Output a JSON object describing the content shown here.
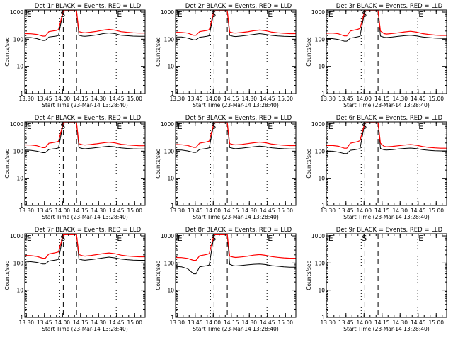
{
  "axes": {
    "x_label": "Start Time (23-Mar-14 13:28:40)",
    "y_label": "Counts/sec",
    "x_ticks": [
      {
        "label": "13:30",
        "min": 1.33
      },
      {
        "label": "13:45",
        "min": 16.33
      },
      {
        "label": "14:00",
        "min": 31.33
      },
      {
        "label": "14:15",
        "min": 46.33
      },
      {
        "label": "14:30",
        "min": 61.33
      },
      {
        "label": "14:45",
        "min": 76.33
      },
      {
        "label": "15:00",
        "min": 91.33
      }
    ],
    "y_ticks": [
      {
        "label": "1",
        "value": 1
      },
      {
        "label": "10",
        "value": 10
      },
      {
        "label": "100",
        "value": 100
      },
      {
        "label": "1000",
        "value": 1000
      }
    ],
    "x_range_min": [
      0,
      100
    ],
    "y_range": [
      1,
      1200
    ],
    "y_scale": "log"
  },
  "markers": [
    {
      "label": "E",
      "min": 1.0,
      "style": "dotted"
    },
    {
      "label": "S",
      "min": 29.0,
      "style": "dotted"
    },
    {
      "label": "E",
      "min": 76.0,
      "style": "dotted"
    }
  ],
  "dashed_lines_min": [
    32.0,
    43.0
  ],
  "colors": {
    "events": "#000000",
    "lld": "#ff0000",
    "axes": "#000000"
  },
  "chart_data": [
    {
      "type": "line",
      "title": "Det 1r  BLACK = Events, RED = LLD",
      "series": [
        {
          "name": "Events",
          "x": [
            0,
            5,
            10,
            15,
            17,
            20,
            23,
            26,
            28,
            32,
            43,
            45,
            48,
            50,
            55,
            60,
            65,
            70,
            75,
            80,
            85,
            90,
            95,
            100
          ],
          "y": [
            115,
            115,
            105,
            90,
            90,
            120,
            125,
            130,
            138,
            1100,
            1100,
            140,
            130,
            128,
            135,
            145,
            160,
            170,
            160,
            140,
            135,
            130,
            128,
            128
          ]
        },
        {
          "name": "LLD",
          "x": [
            0,
            5,
            10,
            15,
            17,
            20,
            23,
            26,
            28,
            32,
            43,
            45,
            48,
            50,
            55,
            60,
            65,
            70,
            75,
            80,
            85,
            90,
            95,
            100
          ],
          "y": [
            160,
            158,
            150,
            130,
            130,
            190,
            200,
            210,
            225,
            1100,
            1100,
            190,
            175,
            172,
            182,
            195,
            215,
            230,
            215,
            190,
            180,
            172,
            168,
            168
          ]
        }
      ]
    },
    {
      "type": "line",
      "title": "Det 2r  BLACK = Events, RED = LLD",
      "series": [
        {
          "name": "Events",
          "x": [
            0,
            5,
            10,
            15,
            17,
            20,
            23,
            26,
            28,
            32,
            43,
            45,
            48,
            50,
            55,
            60,
            65,
            70,
            75,
            80,
            85,
            90,
            95,
            100
          ],
          "y": [
            120,
            120,
            110,
            95,
            95,
            118,
            122,
            128,
            135,
            1100,
            1100,
            138,
            128,
            125,
            132,
            140,
            150,
            160,
            150,
            138,
            132,
            128,
            126,
            126
          ]
        },
        {
          "name": "LLD",
          "x": [
            0,
            5,
            10,
            15,
            17,
            20,
            23,
            26,
            28,
            32,
            43,
            45,
            48,
            50,
            55,
            60,
            65,
            70,
            75,
            80,
            85,
            90,
            95,
            100
          ],
          "y": [
            180,
            178,
            168,
            140,
            140,
            190,
            200,
            210,
            225,
            1100,
            1100,
            185,
            170,
            168,
            176,
            188,
            205,
            218,
            205,
            182,
            172,
            165,
            160,
            160
          ]
        }
      ]
    },
    {
      "type": "line",
      "title": "Det 3r  BLACK = Events, RED = LLD",
      "series": [
        {
          "name": "Events",
          "x": [
            0,
            5,
            10,
            15,
            17,
            20,
            23,
            26,
            28,
            32,
            43,
            45,
            48,
            50,
            55,
            60,
            65,
            70,
            75,
            80,
            85,
            90,
            95,
            100
          ],
          "y": [
            105,
            105,
            98,
            85,
            85,
            110,
            115,
            122,
            128,
            1100,
            1100,
            130,
            118,
            115,
            120,
            128,
            135,
            140,
            132,
            120,
            115,
            110,
            108,
            108
          ]
        },
        {
          "name": "LLD",
          "x": [
            0,
            5,
            10,
            15,
            17,
            20,
            23,
            26,
            28,
            32,
            43,
            45,
            48,
            50,
            55,
            60,
            65,
            70,
            75,
            80,
            85,
            90,
            95,
            100
          ],
          "y": [
            165,
            168,
            158,
            132,
            132,
            200,
            215,
            230,
            250,
            1100,
            1100,
            200,
            160,
            155,
            162,
            172,
            185,
            195,
            182,
            160,
            150,
            142,
            138,
            138
          ]
        }
      ]
    },
    {
      "type": "line",
      "title": "Det 4r  BLACK = Events, RED = LLD",
      "series": [
        {
          "name": "Events",
          "x": [
            0,
            5,
            10,
            15,
            17,
            20,
            23,
            26,
            28,
            32,
            43,
            45,
            48,
            50,
            55,
            60,
            65,
            70,
            75,
            80,
            85,
            90,
            95,
            100
          ],
          "y": [
            110,
            108,
            100,
            88,
            88,
            115,
            120,
            125,
            132,
            1100,
            1100,
            135,
            125,
            122,
            128,
            136,
            145,
            152,
            145,
            132,
            126,
            122,
            120,
            120
          ]
        },
        {
          "name": "LLD",
          "x": [
            0,
            5,
            10,
            15,
            17,
            20,
            23,
            26,
            28,
            32,
            43,
            45,
            48,
            50,
            55,
            60,
            65,
            70,
            75,
            80,
            85,
            90,
            95,
            100
          ],
          "y": [
            170,
            168,
            158,
            135,
            135,
            195,
            205,
            218,
            232,
            1100,
            1100,
            188,
            172,
            168,
            176,
            188,
            202,
            214,
            202,
            180,
            170,
            163,
            158,
            158
          ]
        }
      ]
    },
    {
      "type": "line",
      "title": "Det 5r  BLACK = Events, RED = LLD",
      "series": [
        {
          "name": "Events",
          "x": [
            0,
            5,
            10,
            15,
            17,
            20,
            23,
            26,
            28,
            32,
            43,
            45,
            48,
            50,
            55,
            60,
            65,
            70,
            75,
            80,
            85,
            90,
            95,
            100
          ],
          "y": [
            112,
            110,
            102,
            90,
            90,
            116,
            121,
            126,
            133,
            1100,
            1100,
            136,
            126,
            123,
            129,
            137,
            146,
            153,
            146,
            133,
            127,
            123,
            121,
            121
          ]
        },
        {
          "name": "LLD",
          "x": [
            0,
            5,
            10,
            15,
            17,
            20,
            23,
            26,
            28,
            32,
            43,
            45,
            48,
            50,
            55,
            60,
            65,
            70,
            75,
            80,
            85,
            90,
            95,
            100
          ],
          "y": [
            175,
            172,
            162,
            138,
            138,
            198,
            208,
            220,
            235,
            1100,
            1100,
            190,
            174,
            170,
            178,
            190,
            204,
            216,
            204,
            182,
            172,
            165,
            160,
            160
          ]
        }
      ]
    },
    {
      "type": "line",
      "title": "Det 6r  BLACK = Events, RED = LLD",
      "series": [
        {
          "name": "Events",
          "x": [
            0,
            5,
            10,
            15,
            17,
            20,
            23,
            26,
            28,
            32,
            43,
            45,
            48,
            50,
            55,
            60,
            65,
            70,
            75,
            80,
            85,
            90,
            95,
            100
          ],
          "y": [
            100,
            100,
            92,
            82,
            82,
            108,
            112,
            118,
            124,
            1100,
            1100,
            125,
            112,
            110,
            114,
            120,
            126,
            130,
            124,
            114,
            108,
            104,
            102,
            102
          ]
        },
        {
          "name": "LLD",
          "x": [
            0,
            5,
            10,
            15,
            17,
            20,
            23,
            26,
            28,
            32,
            43,
            45,
            48,
            50,
            55,
            60,
            65,
            70,
            75,
            80,
            85,
            90,
            95,
            100
          ],
          "y": [
            160,
            162,
            152,
            128,
            128,
            195,
            210,
            225,
            245,
            1100,
            1100,
            195,
            150,
            145,
            150,
            158,
            168,
            175,
            165,
            148,
            138,
            132,
            128,
            128
          ]
        }
      ]
    },
    {
      "type": "line",
      "title": "Det 7r  BLACK = Events, RED = LLD",
      "series": [
        {
          "name": "Events",
          "x": [
            0,
            5,
            10,
            15,
            17,
            20,
            23,
            26,
            28,
            32,
            43,
            45,
            48,
            50,
            55,
            60,
            65,
            70,
            75,
            80,
            85,
            90,
            95,
            100
          ],
          "y": [
            115,
            112,
            105,
            92,
            92,
            118,
            124,
            130,
            138,
            1100,
            1100,
            140,
            130,
            127,
            134,
            143,
            155,
            165,
            155,
            140,
            133,
            128,
            126,
            126
          ]
        },
        {
          "name": "LLD",
          "x": [
            0,
            5,
            10,
            15,
            17,
            20,
            23,
            26,
            28,
            32,
            43,
            45,
            48,
            50,
            55,
            60,
            65,
            70,
            75,
            80,
            85,
            90,
            95,
            100
          ],
          "y": [
            190,
            188,
            175,
            150,
            150,
            215,
            228,
            242,
            258,
            1100,
            1100,
            205,
            185,
            180,
            190,
            205,
            222,
            236,
            220,
            195,
            182,
            175,
            170,
            170
          ]
        }
      ]
    },
    {
      "type": "line",
      "title": "Det 8r  BLACK = Events, RED = LLD",
      "series": [
        {
          "name": "Events",
          "x": [
            0,
            5,
            10,
            15,
            17,
            20,
            23,
            26,
            28,
            32,
            43,
            45,
            48,
            50,
            55,
            60,
            65,
            70,
            75,
            80,
            85,
            90,
            95,
            100
          ],
          "y": [
            75,
            72,
            62,
            40,
            40,
            72,
            76,
            80,
            85,
            1100,
            1100,
            90,
            80,
            78,
            82,
            86,
            90,
            92,
            88,
            80,
            76,
            72,
            70,
            70
          ]
        },
        {
          "name": "LLD",
          "x": [
            0,
            5,
            10,
            15,
            17,
            20,
            23,
            26,
            28,
            32,
            43,
            45,
            48,
            50,
            55,
            60,
            65,
            70,
            75,
            80,
            85,
            90,
            95,
            100
          ],
          "y": [
            160,
            158,
            148,
            125,
            125,
            185,
            195,
            208,
            222,
            1100,
            1100,
            180,
            165,
            160,
            168,
            180,
            195,
            205,
            192,
            172,
            162,
            155,
            150,
            150
          ]
        }
      ]
    },
    {
      "type": "line",
      "title": "Det 9r  BLACK = Events, RED = LLD",
      "series": []
    }
  ]
}
